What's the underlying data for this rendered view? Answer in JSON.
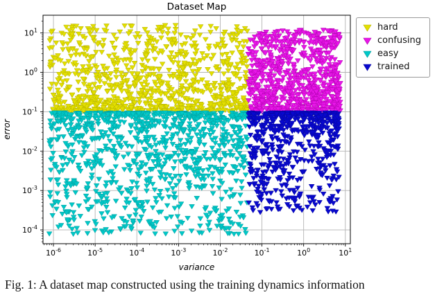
{
  "figure": {
    "caption": "Fig. 1: A dataset map constructed using the training dynamics information"
  },
  "chart_data": {
    "type": "scatter",
    "title": "Dataset Map",
    "xlabel": "variance",
    "ylabel": "error",
    "x_scale": "log",
    "y_scale": "log",
    "grid": true,
    "grid_color": "#b3b3b3",
    "legend_position": "upper right outside plot",
    "marker": "triangle-down",
    "x_tick_exponents": [
      -6,
      -5,
      -4,
      -3,
      -2,
      -1,
      0,
      1
    ],
    "y_tick_exponents": [
      -4,
      -3,
      -2,
      -1,
      0,
      1
    ],
    "xlim_log10": [
      -6.25,
      1.12
    ],
    "ylim_log10": [
      -4.35,
      1.45
    ],
    "region_boundaries": {
      "variance_split": 0.05,
      "error_split": 0.1
    },
    "series": [
      {
        "name": "hard",
        "color": "#e3df00",
        "edge_color": "#b5b200",
        "count": 900,
        "x_log10_range": [
          -6.1,
          -1.33
        ],
        "y_log10_range": [
          -0.98,
          1.2
        ],
        "density_bias": "low",
        "bias_strength": 1.8
      },
      {
        "name": "confusing",
        "color": "#e816e8",
        "edge_color": "#b000b0",
        "count": 750,
        "x_log10_range": [
          -1.33,
          0.88
        ],
        "y_log10_range": [
          -0.98,
          1.08
        ],
        "density_bias": "low",
        "bias_strength": 1.4
      },
      {
        "name": "easy",
        "color": "#00c8c8",
        "edge_color": "#009c9c",
        "count": 1000,
        "x_log10_range": [
          -6.1,
          -1.33
        ],
        "y_log10_range": [
          -4.1,
          -1.02
        ],
        "density_bias": "high",
        "bias_strength": 1.9
      },
      {
        "name": "trained",
        "color": "#0808cf",
        "edge_color": "#0606a0",
        "count": 600,
        "x_log10_range": [
          -1.32,
          0.85
        ],
        "y_log10_range": [
          -3.55,
          -1.02
        ],
        "density_bias": "high",
        "bias_strength": 2.1
      }
    ]
  }
}
